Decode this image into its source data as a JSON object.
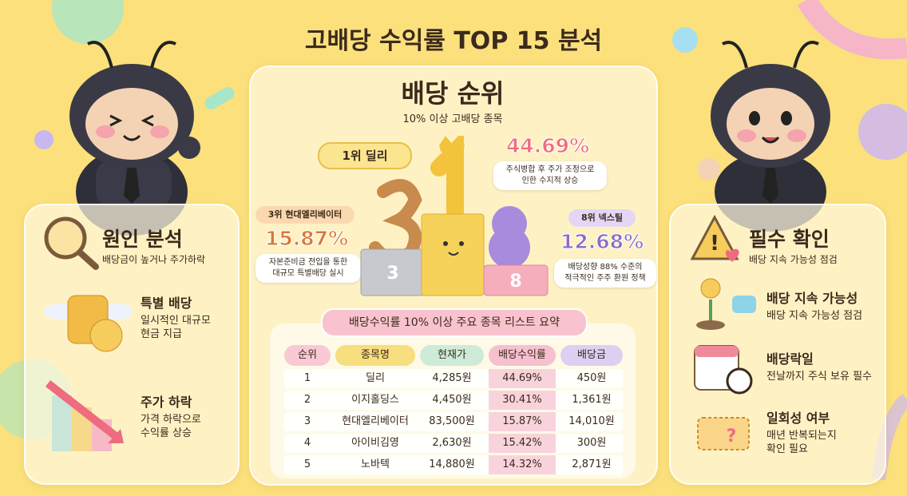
{
  "title": "고배당 수익률 TOP 15 분석",
  "ranking": {
    "heading": "배당 순위",
    "subtitle": "10% 이상 고배당 종목",
    "first": {
      "label": "1위 딜리",
      "value": "44.69%",
      "note": [
        "주식병합 후 주가 조정으로",
        "인한 수지적 상승"
      ]
    },
    "third": {
      "label": "3위 현대엘리베이터",
      "value": "15.87%",
      "note": [
        "자본준비금 전입을 통한",
        "대규모 특별배당 실시"
      ],
      "podium": "3"
    },
    "eighth": {
      "label": "8위 넥스틸",
      "value": "12.68%",
      "note": [
        "배당성향 88% 수준의",
        "적극적인 주주 환원 정책"
      ],
      "podium": "8"
    }
  },
  "table": {
    "title": "배당수익률 10% 이상 주요 종목 리스트 요약",
    "headers": [
      "순위",
      "종목명",
      "현재가",
      "배당수익률",
      "배당금"
    ],
    "rows": [
      [
        "1",
        "딜리",
        "4,285원",
        "44.69%",
        "450원"
      ],
      [
        "2",
        "이지홀딩스",
        "4,450원",
        "30.41%",
        "1,361원"
      ],
      [
        "3",
        "현대엘리베이터",
        "83,500원",
        "15.87%",
        "14,010원"
      ],
      [
        "4",
        "아이비김영",
        "2,630원",
        "15.42%",
        "300원"
      ],
      [
        "5",
        "노바텍",
        "14,880원",
        "14.32%",
        "2,871원"
      ]
    ]
  },
  "left": {
    "heading": "원인 분석",
    "subtitle": "배당금이 높거나 주가하락",
    "items": [
      {
        "title": "특별 배당",
        "lines": [
          "일시적인 대규모",
          "현금 지급"
        ]
      },
      {
        "title": "주가 하락",
        "lines": [
          "가격 하락으로",
          "수익률 상승"
        ]
      }
    ]
  },
  "right": {
    "heading": "필수 확인",
    "subtitle": "배당 지속 가능성 점검",
    "items": [
      {
        "title": "배당 지속 가능성",
        "lines": [
          "배당 지속 가능성 점검"
        ]
      },
      {
        "title": "배당락일",
        "lines": [
          "전날까지 주식 보유 필수"
        ]
      },
      {
        "title": "일회성 여부",
        "lines": [
          "매년 반복되는지",
          "확인 필요"
        ]
      }
    ]
  }
}
